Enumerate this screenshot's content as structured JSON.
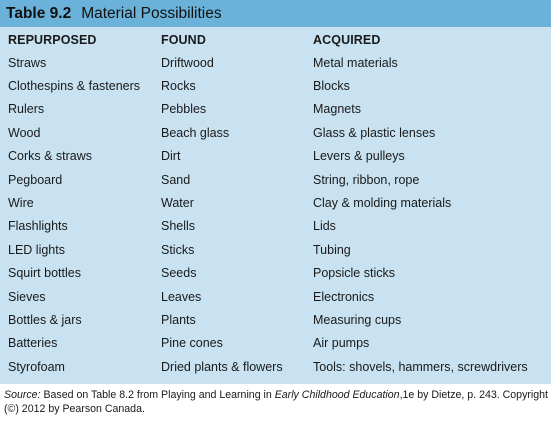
{
  "table": {
    "number": "Table 9.2",
    "title": "Material Possibilities",
    "headers": [
      "REPURPOSED",
      "FOUND",
      "ACQUIRED"
    ],
    "rows": [
      [
        "Straws",
        "Driftwood",
        "Metal materials"
      ],
      [
        "Clothespins & fasteners",
        "Rocks",
        "Blocks"
      ],
      [
        "Rulers",
        "Pebbles",
        "Magnets"
      ],
      [
        "Wood",
        "Beach glass",
        "Glass & plastic lenses"
      ],
      [
        "Corks & straws",
        "Dirt",
        "Levers & pulleys"
      ],
      [
        "Pegboard",
        "Sand",
        "String, ribbon, rope"
      ],
      [
        "Wire",
        "Water",
        "Clay & molding materials"
      ],
      [
        "Flashlights",
        "Shells",
        "Lids"
      ],
      [
        "LED lights",
        "Sticks",
        "Tubing"
      ],
      [
        "Squirt bottles",
        "Seeds",
        "Popsicle sticks"
      ],
      [
        "Sieves",
        "Leaves",
        "Electronics"
      ],
      [
        "Bottles & jars",
        "Plants",
        "Measuring cups"
      ],
      [
        "Batteries",
        "Pine cones",
        "Air pumps"
      ],
      [
        "Styrofoam",
        "Dried plants & flowers",
        "Tools: shovels, hammers, screwdrivers"
      ]
    ]
  },
  "source": {
    "label": "Source:",
    "text_before": " Based on Table 8.2 from Playing and Learning in ",
    "italic_title": "Early Childhood Education",
    "text_after": ",1e by Dietze, p. 243. Copyright (©) 2012 by Pearson Canada."
  },
  "colors": {
    "title_bar": "#6ab2d9",
    "table_background": "#c8e2f1"
  }
}
